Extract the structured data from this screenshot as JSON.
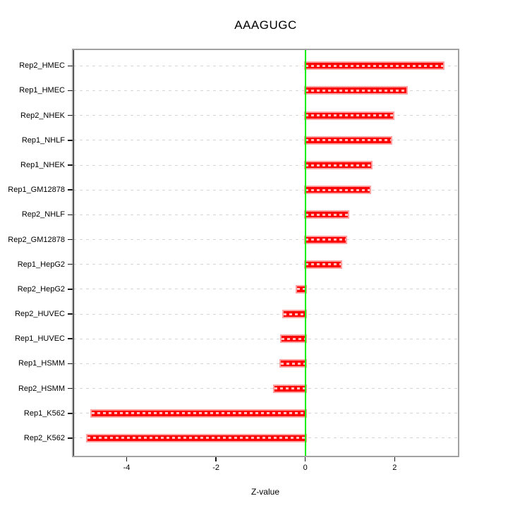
{
  "chart_data": {
    "type": "bar",
    "orientation": "horizontal",
    "title": "AAAGUGC",
    "xlabel": "Z-value",
    "ylabel": "",
    "categories": [
      "Rep2_HMEC",
      "Rep1_HMEC",
      "Rep2_NHEK",
      "Rep1_NHLF",
      "Rep1_NHEK",
      "Rep1_GM12878",
      "Rep2_NHLF",
      "Rep2_GM12878",
      "Rep1_HepG2",
      "Rep2_HepG2",
      "Rep2_HUVEC",
      "Rep1_HUVEC",
      "Rep1_HSMM",
      "Rep2_HSMM",
      "Rep1_K562",
      "Rep2_K562"
    ],
    "values": [
      3.08,
      2.27,
      1.97,
      1.92,
      1.48,
      1.45,
      0.95,
      0.9,
      0.79,
      -0.19,
      -0.49,
      -0.54,
      -0.55,
      -0.69,
      -4.78,
      -4.88
    ],
    "xlim": [
      -5.19,
      3.42
    ],
    "x_ticks": [
      {
        "label": "-4",
        "value": -4
      },
      {
        "label": "-2",
        "value": -2
      },
      {
        "label": "0",
        "value": 0
      },
      {
        "label": "2",
        "value": 2
      }
    ],
    "zero_line_value": 0,
    "grid": "horizontal dashed line per category, full plot width",
    "legend": "none",
    "colors": {
      "bar": "#ff0000",
      "bar_edge": "#ff9f9f",
      "zero_line": "#00ee00",
      "grid": "#d5d5d5",
      "box_border": "#a2a2a2",
      "text": "#000000",
      "background": "#ffffff"
    }
  }
}
